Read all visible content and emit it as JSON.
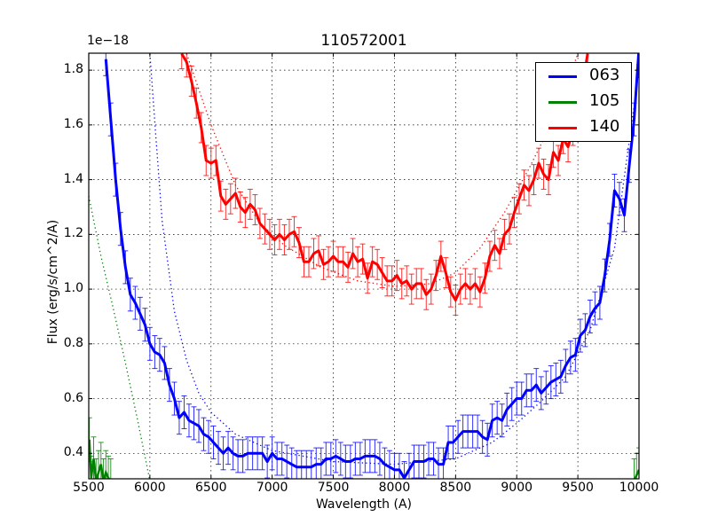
{
  "chart_data": {
    "type": "line",
    "title": "110572001",
    "xlabel": "Wavelength (A)",
    "ylabel": "Flux (erg/s/cm^2/A)",
    "y_offset_label": "1e−18",
    "xlim": [
      5500,
      10000
    ],
    "ylim": [
      0.307,
      1.862
    ],
    "xticks": [
      "5500",
      "6000",
      "6500",
      "7000",
      "7500",
      "8000",
      "8500",
      "9000",
      "9500",
      "10000"
    ],
    "yticks": [
      "0.4",
      "0.6",
      "0.8",
      "1.0",
      "1.2",
      "1.4",
      "1.6",
      "1.8"
    ],
    "grid": true,
    "legend_position": "upper right",
    "legend": [
      "063",
      "105",
      "140"
    ],
    "series": [
      {
        "name": "063",
        "color": "#0000ff",
        "x": [
          5640,
          5680,
          5720,
          5760,
          5800,
          5840,
          5880,
          5920,
          5960,
          6000,
          6040,
          6080,
          6120,
          6160,
          6200,
          6240,
          6280,
          6320,
          6360,
          6400,
          6440,
          6480,
          6520,
          6560,
          6600,
          6640,
          6680,
          6720,
          6760,
          6800,
          6840,
          6880,
          6920,
          6960,
          7000,
          7040,
          7080,
          7120,
          7160,
          7200,
          7240,
          7280,
          7320,
          7360,
          7400,
          7440,
          7480,
          7520,
          7560,
          7600,
          7640,
          7680,
          7720,
          7760,
          7800,
          7840,
          7880,
          7920,
          7960,
          8000,
          8040,
          8080,
          8120,
          8160,
          8200,
          8240,
          8280,
          8320,
          8360,
          8400,
          8440,
          8480,
          8520,
          8560,
          8600,
          8640,
          8680,
          8720,
          8760,
          8800,
          8840,
          8880,
          8920,
          8960,
          9000,
          9040,
          9080,
          9120,
          9160,
          9200,
          9240,
          9280,
          9320,
          9360,
          9400,
          9440,
          9480,
          9520,
          9560,
          9600,
          9640,
          9680,
          9720,
          9760,
          9800,
          9840,
          9880,
          9920,
          9960,
          10000
        ],
        "y": [
          1.84,
          1.62,
          1.4,
          1.22,
          1.08,
          0.98,
          0.95,
          0.91,
          0.87,
          0.8,
          0.77,
          0.76,
          0.73,
          0.65,
          0.6,
          0.53,
          0.55,
          0.52,
          0.51,
          0.5,
          0.47,
          0.46,
          0.44,
          0.42,
          0.4,
          0.42,
          0.4,
          0.39,
          0.39,
          0.4,
          0.4,
          0.4,
          0.4,
          0.37,
          0.4,
          0.38,
          0.38,
          0.37,
          0.36,
          0.35,
          0.35,
          0.35,
          0.35,
          0.36,
          0.36,
          0.38,
          0.38,
          0.39,
          0.38,
          0.37,
          0.37,
          0.38,
          0.38,
          0.39,
          0.39,
          0.39,
          0.38,
          0.36,
          0.35,
          0.34,
          0.34,
          0.31,
          0.34,
          0.37,
          0.37,
          0.37,
          0.38,
          0.38,
          0.36,
          0.36,
          0.44,
          0.44,
          0.46,
          0.48,
          0.48,
          0.48,
          0.48,
          0.46,
          0.45,
          0.52,
          0.53,
          0.52,
          0.56,
          0.58,
          0.6,
          0.6,
          0.63,
          0.63,
          0.65,
          0.62,
          0.64,
          0.66,
          0.67,
          0.68,
          0.72,
          0.75,
          0.76,
          0.83,
          0.85,
          0.9,
          0.93,
          0.95,
          1.05,
          1.18,
          1.36,
          1.33,
          1.27,
          1.45,
          1.62,
          1.88
        ],
        "err": 0.06,
        "model_curve": {
          "x": [
            6000,
            6050,
            6100,
            6200,
            6300,
            6400,
            6500,
            6700,
            7000,
            7500,
            8000,
            8500,
            8800,
            9000,
            9200,
            9400,
            9600,
            9800,
            10000
          ],
          "y": [
            1.86,
            1.55,
            1.25,
            0.92,
            0.74,
            0.62,
            0.55,
            0.47,
            0.41,
            0.37,
            0.36,
            0.38,
            0.44,
            0.51,
            0.59,
            0.68,
            0.85,
            1.15,
            1.8
          ]
        }
      },
      {
        "name": "105",
        "color": "#008000",
        "x": [
          5505,
          5520,
          5540,
          5560,
          5580,
          5600,
          5620,
          5640,
          5660,
          5680,
          9960,
          9980,
          10000
        ],
        "y": [
          0.45,
          0.31,
          0.38,
          0.3,
          0.33,
          0.36,
          0.3,
          0.33,
          0.31,
          0.3,
          0.3,
          0.32,
          0.34
        ],
        "err": 0.08,
        "model_curve": {
          "x": [
            5500,
            5600,
            5700,
            5800,
            5900,
            6000
          ],
          "y": [
            1.34,
            1.12,
            0.93,
            0.73,
            0.52,
            0.3
          ]
        }
      },
      {
        "name": "140",
        "color": "#ff0000",
        "x": [
          6260,
          6300,
          6340,
          6380,
          6420,
          6460,
          6500,
          6540,
          6580,
          6620,
          6660,
          6700,
          6740,
          6780,
          6820,
          6860,
          6900,
          6940,
          6980,
          7020,
          7060,
          7100,
          7140,
          7180,
          7220,
          7260,
          7300,
          7340,
          7380,
          7420,
          7460,
          7500,
          7540,
          7580,
          7620,
          7660,
          7700,
          7740,
          7780,
          7820,
          7860,
          7900,
          7940,
          7980,
          8020,
          8060,
          8100,
          8140,
          8180,
          8220,
          8260,
          8300,
          8340,
          8380,
          8420,
          8460,
          8500,
          8540,
          8580,
          8620,
          8660,
          8700,
          8740,
          8780,
          8820,
          8860,
          8900,
          8940,
          8980,
          9020,
          9060,
          9100,
          9140,
          9180,
          9220,
          9260,
          9300,
          9340,
          9380,
          9420,
          9460,
          9500,
          9540,
          9580
        ],
        "y": [
          1.86,
          1.83,
          1.76,
          1.68,
          1.59,
          1.47,
          1.46,
          1.47,
          1.34,
          1.31,
          1.33,
          1.35,
          1.3,
          1.28,
          1.31,
          1.29,
          1.24,
          1.22,
          1.2,
          1.18,
          1.2,
          1.18,
          1.2,
          1.21,
          1.17,
          1.1,
          1.1,
          1.13,
          1.14,
          1.09,
          1.1,
          1.12,
          1.1,
          1.1,
          1.08,
          1.13,
          1.1,
          1.11,
          1.04,
          1.1,
          1.09,
          1.06,
          1.03,
          1.03,
          1.05,
          1.02,
          1.03,
          1.0,
          1.02,
          1.02,
          0.98,
          1.0,
          1.05,
          1.12,
          1.06,
          0.99,
          0.96,
          1.0,
          1.02,
          1.0,
          1.02,
          0.99,
          1.04,
          1.12,
          1.16,
          1.13,
          1.2,
          1.22,
          1.28,
          1.33,
          1.38,
          1.36,
          1.4,
          1.46,
          1.42,
          1.4,
          1.5,
          1.47,
          1.55,
          1.52,
          1.58,
          1.62,
          1.75,
          1.86
        ],
        "err": 0.055,
        "model_curve": {
          "x": [
            6300,
            6500,
            6700,
            6900,
            7100,
            7400,
            7700,
            8000,
            8300,
            8500,
            8700,
            8900,
            9100,
            9300,
            9500
          ],
          "y": [
            1.86,
            1.6,
            1.38,
            1.24,
            1.16,
            1.08,
            1.03,
            1.01,
            1.02,
            1.06,
            1.15,
            1.28,
            1.44,
            1.62,
            1.86
          ]
        }
      }
    ]
  }
}
